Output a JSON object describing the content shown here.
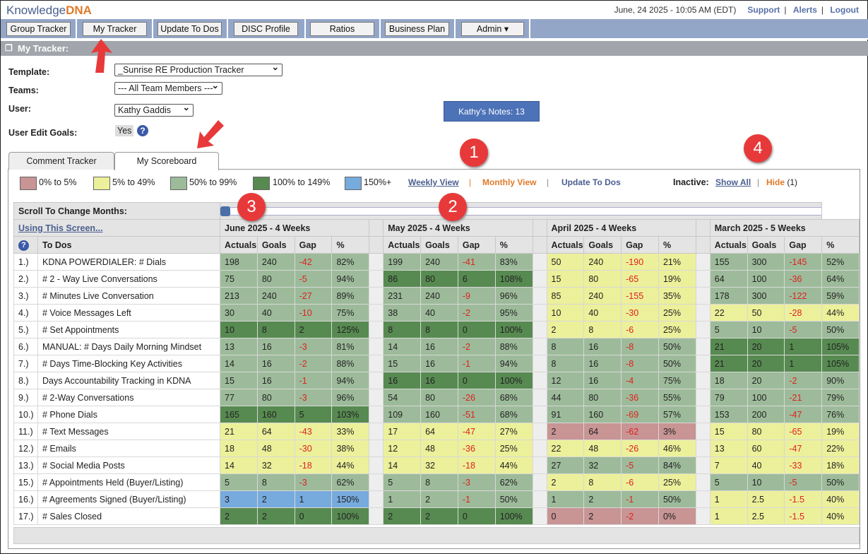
{
  "header": {
    "logo_a": "Knowledge",
    "logo_b": "DNA",
    "datetime": "June, 24 2025 - 10:05 AM (EDT)",
    "links": [
      "Support",
      "Alerts",
      "Logout"
    ],
    "sep": "|"
  },
  "nav": [
    "Group Tracker",
    "My Tracker",
    "Update To Dos",
    "DISC Profile",
    "Ratios",
    "Business Plan",
    "Admin"
  ],
  "section_title": "My Tracker:",
  "form": {
    "template_label": "Template:",
    "template_value": "_Sunrise RE Production Tracker",
    "teams_label": "Teams:",
    "teams_value": "--- All Team Members ---",
    "user_label": "User:",
    "user_value": "Kathy Gaddis",
    "edit_goals_label": "User Edit Goals:",
    "edit_goals_value": "Yes",
    "notes_button": "Kathy's Notes: 13"
  },
  "tabs": [
    "Comment Tracker",
    "My Scoreboard"
  ],
  "legend": [
    {
      "label": "0% to 5%",
      "color": "#c89494"
    },
    {
      "label": "5% to 49%",
      "color": "#ecf09a"
    },
    {
      "label": "50% to 99%",
      "color": "#9dbb9a"
    },
    {
      "label": "100% to 149%",
      "color": "#578a51"
    },
    {
      "label": "150%+",
      "color": "#77aadd"
    }
  ],
  "views": {
    "weekly": "Weekly View",
    "monthly": "Monthly View",
    "update": "Update To Dos",
    "sep": "|",
    "inactive_label": "Inactive:",
    "show_all": "Show All",
    "hide": "Hide",
    "hide_count": "(1)"
  },
  "scoreboard": {
    "scroll_label": "Scroll To Change Months:",
    "help_link": "Using This Screen...",
    "todos_header": "To Dos",
    "months": [
      "June 2025 - 4 Weeks",
      "May 2025 - 4 Weeks",
      "April 2025 - 4 Weeks",
      "March 2025 - 5 Weeks"
    ],
    "columns": [
      "Actuals",
      "Goals",
      "Gap",
      "%"
    ],
    "rows": [
      {
        "n": "1.)",
        "name": "KDNA POWERDIALER: # Dials",
        "m": [
          [
            "198",
            "240",
            "-42",
            "82%",
            "l"
          ],
          [
            "199",
            "240",
            "-41",
            "83%",
            "l"
          ],
          [
            "50",
            "240",
            "-190",
            "21%",
            "y"
          ],
          [
            "155",
            "300",
            "-145",
            "52%",
            "l"
          ]
        ]
      },
      {
        "n": "2.)",
        "name": "# 2 - Way Live Conversations",
        "m": [
          [
            "75",
            "80",
            "-5",
            "94%",
            "l"
          ],
          [
            "86",
            "80",
            "6",
            "108%",
            "d"
          ],
          [
            "15",
            "80",
            "-65",
            "19%",
            "y"
          ],
          [
            "64",
            "100",
            "-36",
            "64%",
            "l"
          ]
        ]
      },
      {
        "n": "3.)",
        "name": "# Minutes Live Conversation",
        "m": [
          [
            "213",
            "240",
            "-27",
            "89%",
            "l"
          ],
          [
            "231",
            "240",
            "-9",
            "96%",
            "l"
          ],
          [
            "85",
            "240",
            "-155",
            "35%",
            "y"
          ],
          [
            "178",
            "300",
            "-122",
            "59%",
            "l"
          ]
        ]
      },
      {
        "n": "4.)",
        "name": "# Voice Messages Left",
        "m": [
          [
            "30",
            "40",
            "-10",
            "75%",
            "l"
          ],
          [
            "38",
            "40",
            "-2",
            "95%",
            "l"
          ],
          [
            "10",
            "40",
            "-30",
            "25%",
            "y"
          ],
          [
            "22",
            "50",
            "-28",
            "44%",
            "y"
          ]
        ]
      },
      {
        "n": "5.)",
        "name": "# Set Appointments",
        "m": [
          [
            "10",
            "8",
            "2",
            "125%",
            "d"
          ],
          [
            "8",
            "8",
            "0",
            "100%",
            "d"
          ],
          [
            "2",
            "8",
            "-6",
            "25%",
            "y"
          ],
          [
            "5",
            "10",
            "-5",
            "50%",
            "l"
          ]
        ]
      },
      {
        "n": "6.)",
        "name": "MANUAL: # Days Daily Morning Mindset",
        "m": [
          [
            "13",
            "16",
            "-3",
            "81%",
            "l"
          ],
          [
            "14",
            "16",
            "-2",
            "88%",
            "l"
          ],
          [
            "8",
            "16",
            "-8",
            "50%",
            "l"
          ],
          [
            "21",
            "20",
            "1",
            "105%",
            "d"
          ]
        ]
      },
      {
        "n": "7.)",
        "name": "# Days Time-Blocking Key Activities",
        "m": [
          [
            "14",
            "16",
            "-2",
            "88%",
            "l"
          ],
          [
            "15",
            "16",
            "-1",
            "94%",
            "l"
          ],
          [
            "8",
            "16",
            "-8",
            "50%",
            "l"
          ],
          [
            "21",
            "20",
            "1",
            "105%",
            "d"
          ]
        ]
      },
      {
        "n": "8.)",
        "name": "Days Accountability Tracking in KDNA",
        "m": [
          [
            "15",
            "16",
            "-1",
            "94%",
            "l"
          ],
          [
            "16",
            "16",
            "0",
            "100%",
            "d"
          ],
          [
            "12",
            "16",
            "-4",
            "75%",
            "l"
          ],
          [
            "18",
            "20",
            "-2",
            "90%",
            "l"
          ]
        ]
      },
      {
        "n": "9.)",
        "name": "# 2-Way Conversations",
        "m": [
          [
            "77",
            "80",
            "-3",
            "96%",
            "l"
          ],
          [
            "54",
            "80",
            "-26",
            "68%",
            "l"
          ],
          [
            "44",
            "80",
            "-36",
            "55%",
            "l"
          ],
          [
            "79",
            "100",
            "-21",
            "79%",
            "l"
          ]
        ]
      },
      {
        "n": "10.)",
        "name": "# Phone Dials",
        "m": [
          [
            "165",
            "160",
            "5",
            "103%",
            "d"
          ],
          [
            "109",
            "160",
            "-51",
            "68%",
            "l"
          ],
          [
            "91",
            "160",
            "-69",
            "57%",
            "l"
          ],
          [
            "153",
            "200",
            "-47",
            "76%",
            "l"
          ]
        ]
      },
      {
        "n": "11.)",
        "name": "# Text Messages",
        "m": [
          [
            "21",
            "64",
            "-43",
            "33%",
            "y"
          ],
          [
            "17",
            "64",
            "-47",
            "27%",
            "y"
          ],
          [
            "2",
            "64",
            "-62",
            "3%",
            "r"
          ],
          [
            "15",
            "80",
            "-65",
            "19%",
            "y"
          ]
        ]
      },
      {
        "n": "12.)",
        "name": "# Emails",
        "m": [
          [
            "18",
            "48",
            "-30",
            "38%",
            "y"
          ],
          [
            "12",
            "48",
            "-36",
            "25%",
            "y"
          ],
          [
            "22",
            "48",
            "-26",
            "46%",
            "y"
          ],
          [
            "13",
            "60",
            "-47",
            "22%",
            "y"
          ]
        ]
      },
      {
        "n": "13.)",
        "name": "# Social Media Posts",
        "m": [
          [
            "14",
            "32",
            "-18",
            "44%",
            "y"
          ],
          [
            "14",
            "32",
            "-18",
            "44%",
            "y"
          ],
          [
            "27",
            "32",
            "-5",
            "84%",
            "l"
          ],
          [
            "7",
            "40",
            "-33",
            "18%",
            "y"
          ]
        ]
      },
      {
        "n": "15.)",
        "name": "# Appointments Held (Buyer/Listing)",
        "m": [
          [
            "5",
            "8",
            "-3",
            "62%",
            "l"
          ],
          [
            "5",
            "8",
            "-3",
            "62%",
            "l"
          ],
          [
            "2",
            "8",
            "-6",
            "25%",
            "y"
          ],
          [
            "5",
            "10",
            "-5",
            "50%",
            "l"
          ]
        ]
      },
      {
        "n": "16.)",
        "name": "# Agreements Signed (Buyer/Listing)",
        "m": [
          [
            "3",
            "2",
            "1",
            "150%",
            "b"
          ],
          [
            "1",
            "2",
            "-1",
            "50%",
            "l"
          ],
          [
            "1",
            "2",
            "-1",
            "50%",
            "l"
          ],
          [
            "1",
            "2.5",
            "-1.5",
            "40%",
            "y"
          ]
        ]
      },
      {
        "n": "17.)",
        "name": "# Sales Closed",
        "m": [
          [
            "2",
            "2",
            "0",
            "100%",
            "d"
          ],
          [
            "2",
            "2",
            "0",
            "100%",
            "d"
          ],
          [
            "0",
            "2",
            "-2",
            "0%",
            "r"
          ],
          [
            "1",
            "2.5",
            "-1.5",
            "40%",
            "y"
          ]
        ]
      }
    ]
  },
  "annotations": [
    "1",
    "2",
    "3",
    "4"
  ]
}
